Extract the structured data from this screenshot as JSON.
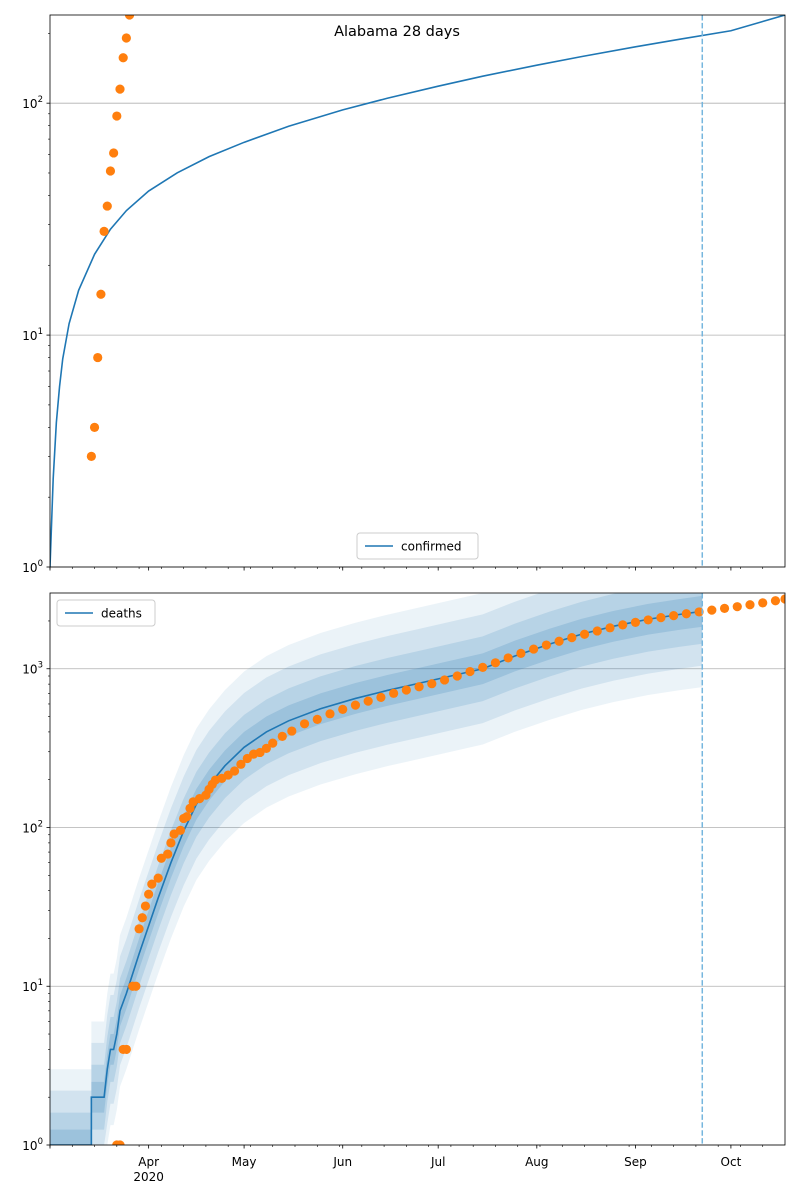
{
  "chart_data": [
    {
      "type": "line",
      "title": "Alabama 28 days",
      "yscale": "log",
      "ylim": [
        1,
        240
      ],
      "y_ticks": [
        {
          "value": 1,
          "base": "10",
          "exp": "0"
        },
        {
          "value": 10,
          "base": "10",
          "exp": "1"
        },
        {
          "value": 100,
          "base": "10",
          "exp": "2"
        }
      ],
      "xlim": [
        "2020-03-01",
        "2020-10-18"
      ],
      "grid": "horizontal-major",
      "legend": {
        "position": "lower center",
        "label": "confirmed"
      },
      "vline_date": "2020-09-22",
      "series": [
        {
          "name": "confirmed",
          "kind": "model-line",
          "color": "#1f77b4",
          "points": [
            [
              "2020-03-01",
              1
            ],
            [
              "2020-03-02",
              2.4
            ],
            [
              "2020-03-03",
              4.2
            ],
            [
              "2020-03-04",
              6.0
            ],
            [
              "2020-03-05",
              7.9
            ],
            [
              "2020-03-07",
              11.2
            ],
            [
              "2020-03-10",
              15.6
            ],
            [
              "2020-03-15",
              22.3
            ],
            [
              "2020-03-20",
              28.6
            ],
            [
              "2020-03-25",
              34.4
            ],
            [
              "2020-04-01",
              41.8
            ],
            [
              "2020-04-10",
              50.1
            ],
            [
              "2020-04-20",
              58.8
            ],
            [
              "2020-05-01",
              67.8
            ],
            [
              "2020-05-15",
              79.5
            ],
            [
              "2020-06-01",
              93.6
            ],
            [
              "2020-06-15",
              105.0
            ],
            [
              "2020-07-01",
              118.4
            ],
            [
              "2020-07-15",
              130.7
            ],
            [
              "2020-08-01",
              145.8
            ],
            [
              "2020-08-15",
              158.8
            ],
            [
              "2020-09-01",
              175.0
            ],
            [
              "2020-09-15",
              188.7
            ],
            [
              "2020-10-01",
              205.2
            ],
            [
              "2020-10-18",
              240.0
            ]
          ]
        },
        {
          "name": "observed",
          "kind": "markers",
          "color": "#ff7f0e",
          "points": [
            [
              "2020-03-14",
              3
            ],
            [
              "2020-03-15",
              4
            ],
            [
              "2020-03-16",
              8
            ],
            [
              "2020-03-17",
              15
            ],
            [
              "2020-03-18",
              28
            ],
            [
              "2020-03-19",
              36
            ],
            [
              "2020-03-20",
              51
            ],
            [
              "2020-03-21",
              61
            ],
            [
              "2020-03-22",
              88
            ],
            [
              "2020-03-23",
              115
            ],
            [
              "2020-03-24",
              157
            ],
            [
              "2020-03-25",
              191
            ],
            [
              "2020-03-26",
              240
            ]
          ]
        }
      ]
    },
    {
      "type": "line",
      "title": "",
      "yscale": "log",
      "ylim": [
        1,
        3000
      ],
      "y_ticks": [
        {
          "value": 1,
          "base": "10",
          "exp": "0"
        },
        {
          "value": 10,
          "base": "10",
          "exp": "1"
        },
        {
          "value": 100,
          "base": "10",
          "exp": "2"
        },
        {
          "value": 1000,
          "base": "10",
          "exp": "3"
        }
      ],
      "xlim": [
        "2020-03-01",
        "2020-10-18"
      ],
      "x_ticks": [
        {
          "date": "2020-04-01",
          "label": "Apr",
          "sub": "2020"
        },
        {
          "date": "2020-05-01",
          "label": "May"
        },
        {
          "date": "2020-06-01",
          "label": "Jun"
        },
        {
          "date": "2020-07-01",
          "label": "Jul"
        },
        {
          "date": "2020-08-01",
          "label": "Aug"
        },
        {
          "date": "2020-09-01",
          "label": "Sep"
        },
        {
          "date": "2020-10-01",
          "label": "Oct"
        }
      ],
      "grid": "horizontal-major",
      "legend": {
        "position": "upper left",
        "label": "deaths"
      },
      "vline_date": "2020-09-22",
      "series": [
        {
          "name": "deaths",
          "kind": "model-line",
          "color": "#1f77b4",
          "points": [
            [
              "2020-03-01",
              1
            ],
            [
              "2020-03-14",
              1
            ],
            [
              "2020-03-14",
              2
            ],
            [
              "2020-03-18",
              2
            ],
            [
              "2020-03-19",
              3
            ],
            [
              "2020-03-20",
              4
            ],
            [
              "2020-03-21",
              4
            ],
            [
              "2020-03-22",
              5
            ],
            [
              "2020-03-23",
              7
            ],
            [
              "2020-03-25",
              9
            ],
            [
              "2020-03-27",
              12
            ],
            [
              "2020-03-29",
              16
            ],
            [
              "2020-04-01",
              24
            ],
            [
              "2020-04-04",
              36
            ],
            [
              "2020-04-08",
              60
            ],
            [
              "2020-04-12",
              95
            ],
            [
              "2020-04-16",
              140
            ],
            [
              "2020-04-20",
              185
            ],
            [
              "2020-04-25",
              245
            ],
            [
              "2020-05-01",
              320
            ],
            [
              "2020-05-08",
              400
            ],
            [
              "2020-05-15",
              470
            ],
            [
              "2020-05-25",
              560
            ],
            [
              "2020-06-05",
              650
            ],
            [
              "2020-06-15",
              730
            ],
            [
              "2020-06-25",
              810
            ],
            [
              "2020-07-05",
              900
            ],
            [
              "2020-07-15",
              1000
            ],
            [
              "2020-07-25",
              1200
            ],
            [
              "2020-08-05",
              1430
            ],
            [
              "2020-08-15",
              1650
            ],
            [
              "2020-08-25",
              1850
            ],
            [
              "2020-09-05",
              2050
            ],
            [
              "2020-09-15",
              2200
            ],
            [
              "2020-09-22",
              2300
            ]
          ]
        },
        {
          "name": "observed",
          "kind": "markers",
          "color": "#ff7f0e",
          "points": [
            [
              "2020-03-22",
              1
            ],
            [
              "2020-03-23",
              1
            ],
            [
              "2020-03-24",
              4
            ],
            [
              "2020-03-25",
              4
            ],
            [
              "2020-03-27",
              10
            ],
            [
              "2020-03-28",
              10
            ],
            [
              "2020-03-29",
              23
            ],
            [
              "2020-03-30",
              27
            ],
            [
              "2020-03-31",
              32
            ],
            [
              "2020-04-01",
              38
            ],
            [
              "2020-04-02",
              44
            ],
            [
              "2020-04-04",
              48
            ],
            [
              "2020-04-05",
              64
            ],
            [
              "2020-04-07",
              68
            ],
            [
              "2020-04-08",
              80
            ],
            [
              "2020-04-09",
              91
            ],
            [
              "2020-04-11",
              96
            ],
            [
              "2020-04-12",
              114
            ],
            [
              "2020-04-13",
              117
            ],
            [
              "2020-04-14",
              132
            ],
            [
              "2020-04-15",
              145
            ],
            [
              "2020-04-17",
              152
            ],
            [
              "2020-04-19",
              160
            ],
            [
              "2020-04-20",
              174
            ],
            [
              "2020-04-21",
              187
            ],
            [
              "2020-04-22",
              199
            ],
            [
              "2020-04-24",
              204
            ],
            [
              "2020-04-26",
              214
            ],
            [
              "2020-04-28",
              227
            ],
            [
              "2020-04-30",
              250
            ],
            [
              "2020-05-02",
              272
            ],
            [
              "2020-05-04",
              290
            ],
            [
              "2020-05-06",
              297
            ],
            [
              "2020-05-08",
              315
            ],
            [
              "2020-05-10",
              340
            ],
            [
              "2020-05-13",
              375
            ],
            [
              "2020-05-16",
              405
            ],
            [
              "2020-05-20",
              450
            ],
            [
              "2020-05-24",
              480
            ],
            [
              "2020-05-28",
              520
            ],
            [
              "2020-06-01",
              555
            ],
            [
              "2020-06-05",
              590
            ],
            [
              "2020-06-09",
              625
            ],
            [
              "2020-06-13",
              660
            ],
            [
              "2020-06-17",
              700
            ],
            [
              "2020-06-21",
              735
            ],
            [
              "2020-06-25",
              770
            ],
            [
              "2020-06-29",
              805
            ],
            [
              "2020-07-03",
              850
            ],
            [
              "2020-07-07",
              900
            ],
            [
              "2020-07-11",
              960
            ],
            [
              "2020-07-15",
              1020
            ],
            [
              "2020-07-19",
              1090
            ],
            [
              "2020-07-23",
              1170
            ],
            [
              "2020-07-27",
              1250
            ],
            [
              "2020-07-31",
              1330
            ],
            [
              "2020-08-04",
              1410
            ],
            [
              "2020-08-08",
              1490
            ],
            [
              "2020-08-12",
              1570
            ],
            [
              "2020-08-16",
              1650
            ],
            [
              "2020-08-20",
              1730
            ],
            [
              "2020-08-24",
              1810
            ],
            [
              "2020-08-28",
              1890
            ],
            [
              "2020-09-01",
              1960
            ],
            [
              "2020-09-05",
              2030
            ],
            [
              "2020-09-09",
              2100
            ],
            [
              "2020-09-13",
              2160
            ],
            [
              "2020-09-17",
              2220
            ],
            [
              "2020-09-21",
              2280
            ],
            [
              "2020-09-25",
              2340
            ],
            [
              "2020-09-29",
              2400
            ],
            [
              "2020-10-03",
              2460
            ],
            [
              "2020-10-07",
              2530
            ],
            [
              "2020-10-11",
              2600
            ],
            [
              "2020-10-15",
              2680
            ],
            [
              "2020-10-18",
              2750
            ]
          ]
        }
      ]
    }
  ]
}
